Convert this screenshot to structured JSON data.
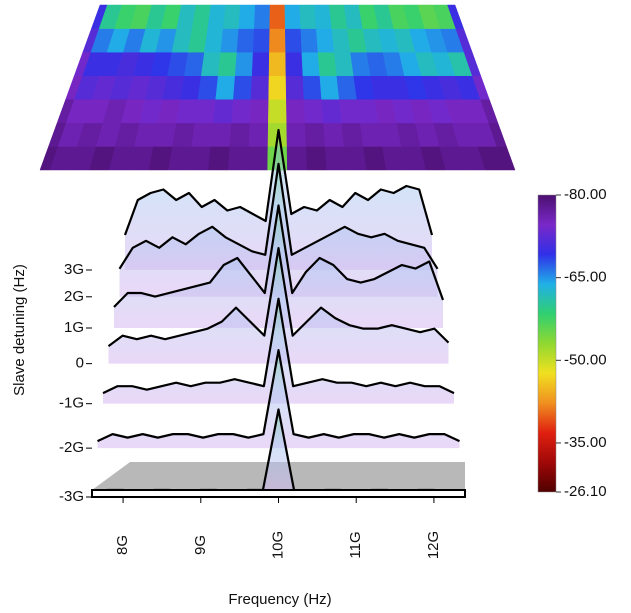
{
  "chart_data": {
    "type": "waterfall",
    "x_label": "Frequency (Hz)",
    "y_label": "Slave detuning (Hz)",
    "x": [
      7600000000.0,
      7800000000.0,
      8000000000.0,
      8200000000.0,
      8400000000.0,
      8600000000.0,
      8800000000.0,
      9000000000.0,
      9200000000.0,
      9400000000.0,
      9600000000.0,
      9800000000.0,
      10000000000.0,
      10200000000.0,
      10400000000.0,
      10600000000.0,
      10800000000.0,
      11000000000.0,
      11200000000.0,
      11400000000.0,
      11600000000.0,
      11800000000.0,
      12000000000.0,
      12200000000.0,
      12400000000.0
    ],
    "xlim": [
      7600000000.0,
      12400000000.0
    ],
    "xticks": [
      {
        "value": 8000000000.0,
        "label": "8G"
      },
      {
        "value": 9000000000.0,
        "label": "9G"
      },
      {
        "value": 10000000000.0,
        "label": "10G"
      },
      {
        "value": 11000000000.0,
        "label": "11G"
      },
      {
        "value": 12000000000.0,
        "label": "12G"
      }
    ],
    "ylim": [
      -3000000000.0,
      3000000000.0
    ],
    "yticks": [
      {
        "value": -3000000000.0,
        "label": "-3G"
      },
      {
        "value": -2000000000.0,
        "label": "-2G"
      },
      {
        "value": -1000000000.0,
        "label": "-1G"
      },
      0,
      {
        "value": 1000000000.0,
        "label": "1G"
      },
      {
        "value": 2000000000.0,
        "label": "2G"
      },
      {
        "value": 3000000000.0,
        "label": "3G"
      }
    ],
    "zlim": [
      -80,
      -26.1
    ],
    "zticks": [
      {
        "value": -80,
        "label": "-80.00"
      },
      {
        "value": -65,
        "label": "-65.00"
      },
      {
        "value": -50,
        "label": "-50.00"
      },
      {
        "value": -35,
        "label": "-35.00"
      },
      {
        "value": -26.1,
        "label": "-26.10"
      }
    ],
    "colorscale": [
      "#4b1070",
      "#7a28c8",
      "#3030e8",
      "#20b0e8",
      "#30d070",
      "#90d830",
      "#f0e020",
      "#f09020",
      "#e02010",
      "#a00808",
      "#500000"
    ],
    "line_color": "#000000",
    "series": [
      {
        "detuning": -3000000000.0,
        "values": [
          -79,
          -78,
          -78,
          -79,
          -78,
          -78,
          -79,
          -78,
          -78,
          -79,
          -78,
          -78,
          -55,
          -78,
          -79,
          -78,
          -78,
          -79,
          -78,
          -78,
          -79,
          -78,
          -78,
          -79,
          -79
        ]
      },
      {
        "detuning": -2000000000.0,
        "values": [
          -78,
          -76,
          -77,
          -76,
          -77,
          -76,
          -76,
          -77,
          -76,
          -76,
          -77,
          -76,
          -52,
          -76,
          -77,
          -76,
          -77,
          -76,
          -76,
          -77,
          -76,
          -77,
          -76,
          -76,
          -78
        ]
      },
      {
        "detuning": -1000000000.0,
        "values": [
          -77,
          -75,
          -75,
          -76,
          -75,
          -74,
          -75,
          -74,
          -74,
          -73,
          -74,
          -75,
          -50,
          -75,
          -74,
          -73,
          -74,
          -74,
          -75,
          -74,
          -75,
          -74,
          -75,
          -75,
          -77
        ]
      },
      {
        "detuning": 0,
        "values": [
          -75,
          -72,
          -73,
          -72,
          -73,
          -72,
          -71,
          -70,
          -68,
          -64,
          -68,
          -72,
          -47,
          -72,
          -68,
          -64,
          -67,
          -69,
          -70,
          -70,
          -69,
          -70,
          -71,
          -70,
          -74
        ]
      },
      {
        "detuning": 1000000000.0,
        "values": [
          -74,
          -70,
          -70,
          -71,
          -70,
          -69,
          -68,
          -67,
          -62,
          -60,
          -65,
          -70,
          -45,
          -70,
          -64,
          -60,
          -62,
          -66,
          -67,
          -66,
          -64,
          -62,
          -63,
          -61,
          -72
        ]
      },
      {
        "detuning": 2000000000.0,
        "values": [
          -72,
          -66,
          -64,
          -66,
          -63,
          -65,
          -62,
          -60,
          -63,
          -65,
          -67,
          -68,
          -42,
          -68,
          -66,
          -64,
          -62,
          -60,
          -62,
          -63,
          -62,
          -64,
          -65,
          -66,
          -72
        ]
      },
      {
        "detuning": 3000000000.0,
        "values": [
          -70,
          -60,
          -58,
          -57,
          -60,
          -58,
          -62,
          -60,
          -63,
          -62,
          -64,
          -66,
          -40,
          -64,
          -62,
          -63,
          -60,
          -62,
          -58,
          -60,
          -57,
          -58,
          -56,
          -57,
          -70
        ]
      }
    ]
  }
}
